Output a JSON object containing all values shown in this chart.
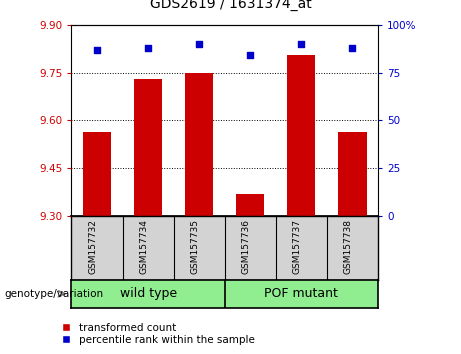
{
  "title": "GDS2619 / 1631374_at",
  "samples": [
    "GSM157732",
    "GSM157734",
    "GSM157735",
    "GSM157736",
    "GSM157737",
    "GSM157738"
  ],
  "bar_values": [
    9.565,
    9.73,
    9.75,
    9.37,
    9.805,
    9.565
  ],
  "percentile_values": [
    87,
    88,
    90,
    84,
    90,
    88
  ],
  "ylim_left": [
    9.3,
    9.9
  ],
  "ylim_right": [
    0,
    100
  ],
  "yticks_left": [
    9.3,
    9.45,
    9.6,
    9.75,
    9.9
  ],
  "yticks_right": [
    0,
    25,
    50,
    75,
    100
  ],
  "bar_color": "#cc0000",
  "percentile_color": "#0000cc",
  "bar_width": 0.55,
  "genotype_label": "genotype/variation",
  "legend_bar_label": "transformed count",
  "legend_pct_label": "percentile rank within the sample",
  "grid_color": "black",
  "tick_label_color_left": "#cc0000",
  "tick_label_color_right": "#0000cc",
  "bg_color": "#d3d3d3",
  "green_color": "#90ee90",
  "plot_bg": "white",
  "group1_label": "wild type",
  "group2_label": "POF mutant"
}
